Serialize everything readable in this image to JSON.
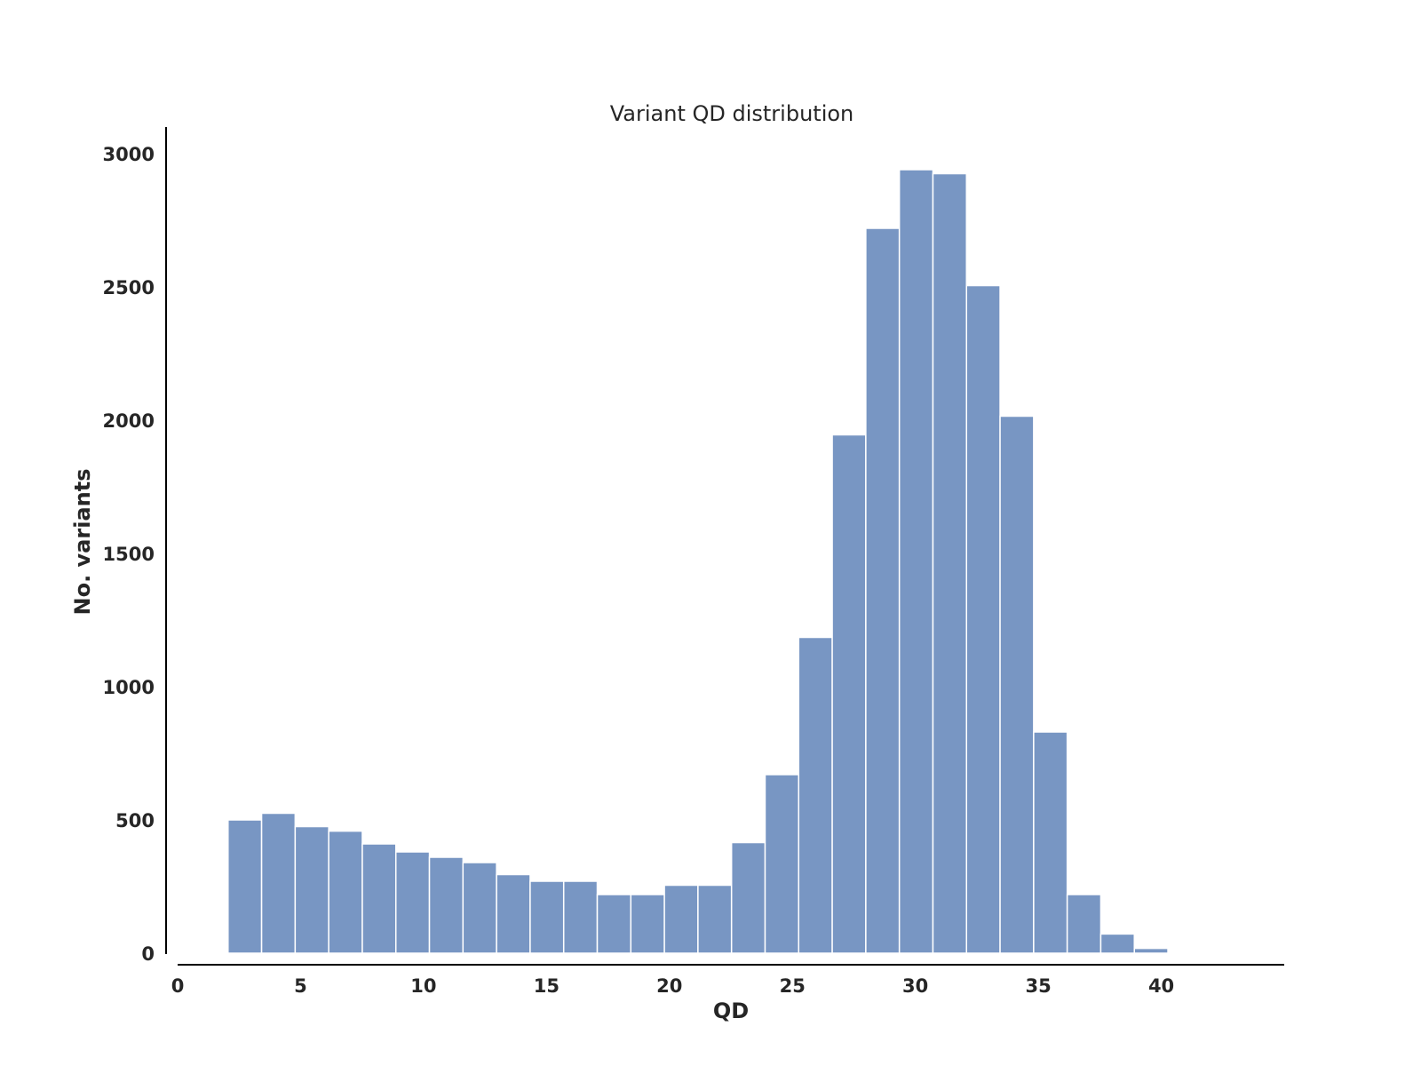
{
  "chart_data": {
    "type": "bar",
    "subtype": "histogram",
    "title": "Variant QD distribution",
    "xlabel": "QD",
    "ylabel": "No. variants",
    "xlim": [
      0,
      45
    ],
    "ylim": [
      0,
      3100
    ],
    "x_ticks": [
      0,
      5,
      10,
      15,
      20,
      25,
      30,
      35,
      40
    ],
    "y_ticks": [
      0,
      500,
      1000,
      1500,
      2000,
      2500,
      3000
    ],
    "bin_start": 2.05,
    "bin_width": 1.365,
    "values": [
      500,
      525,
      475,
      458,
      410,
      380,
      360,
      340,
      295,
      270,
      270,
      220,
      220,
      255,
      255,
      415,
      670,
      1185,
      1945,
      2720,
      2940,
      2925,
      2505,
      2015,
      830,
      220,
      72,
      18
    ],
    "bar_color": "#7896c3",
    "grid": false,
    "legend": "none"
  }
}
